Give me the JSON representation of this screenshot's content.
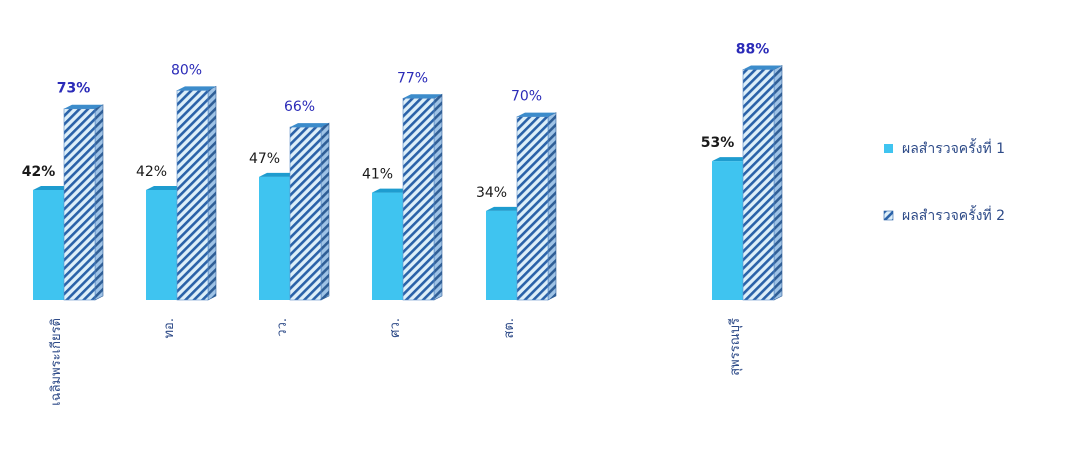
{
  "colors": {
    "series1_face": "#3FC4F0",
    "series1_top": "#1E9CCF",
    "series1_side": "#2AA6D8",
    "series2_base": "#DDEFF9",
    "series2_stripe": "#2A62A8",
    "series2_top": "#3C8CCB",
    "series2_side": "#2F5E96",
    "label_series1": "#1a1a1a",
    "label_series2": "#2B2BB8",
    "category_text": "#2E4B88",
    "legend_text": "#2E4B88"
  },
  "legend": {
    "items": [
      {
        "label": "ผลสำรวจครั้งที่ 1",
        "style": "solid"
      },
      {
        "label": "ผลสำรวจครั้งที่ 2",
        "style": "hatched"
      }
    ]
  },
  "chart_data": {
    "type": "bar",
    "title": "",
    "xlabel": "",
    "ylabel": "",
    "ylim": [
      0,
      100
    ],
    "grid": false,
    "legend_position": "right",
    "categories": [
      "เฉลิมพระเกียรติ",
      "ทอ.",
      "วว.",
      "ศว.",
      "สต.",
      "สุพรรณบุรี"
    ],
    "series": [
      {
        "name": "ผลสำรวจครั้งที่ 1",
        "values": [
          42,
          42,
          47,
          41,
          34,
          53
        ],
        "labels": [
          "42%",
          "42%",
          "47%",
          "41%",
          "34%",
          "53%"
        ]
      },
      {
        "name": "ผลสำรวจครั้งที่ 2",
        "values": [
          73,
          80,
          66,
          77,
          70,
          88
        ],
        "labels": [
          "73%",
          "80%",
          "66%",
          "77%",
          "70%",
          "88%"
        ]
      }
    ]
  }
}
